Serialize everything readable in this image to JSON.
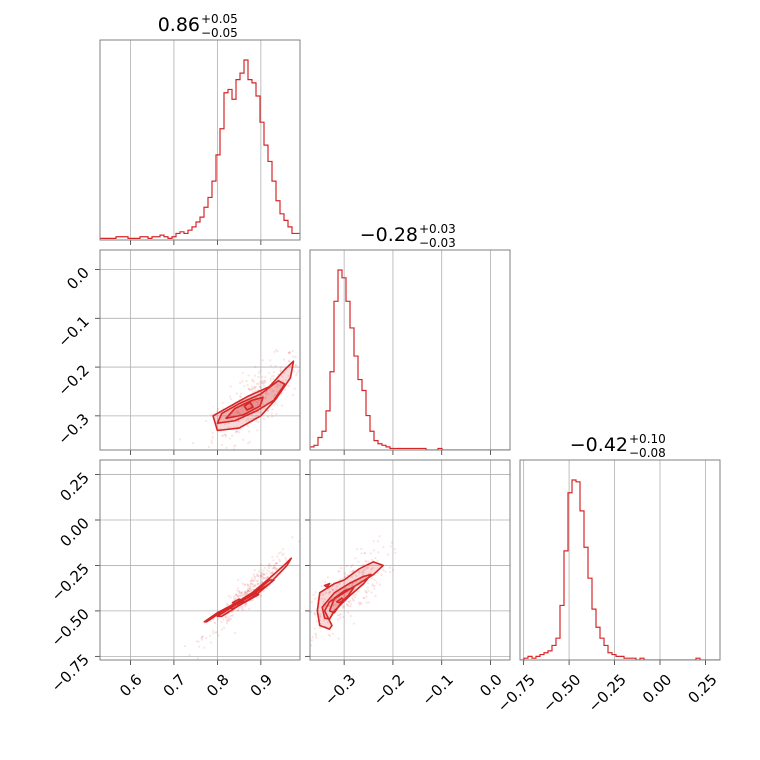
{
  "colors": {
    "series": "#d62728",
    "frame": "#808080",
    "grid": "#b0b0b0"
  },
  "chart_data": {
    "type": "corner",
    "grid": true,
    "parameters": [
      {
        "range": [
          0.53,
          0.99
        ],
        "ticks": [
          0.6,
          0.7,
          0.8,
          0.9
        ],
        "tick_labels": [
          "0.6",
          "0.7",
          "0.8",
          "0.9"
        ],
        "summary": {
          "median": "0.86",
          "plus": "+0.05",
          "minus": "−0.05"
        }
      },
      {
        "range": [
          -0.37,
          0.04
        ],
        "ticks": [
          -0.3,
          -0.2,
          -0.1,
          0.0
        ],
        "tick_labels": [
          "−0.3",
          "−0.2",
          "−0.1",
          "0.0"
        ],
        "summary": {
          "median": "−0.28",
          "plus": "+0.03",
          "minus": "−0.03"
        }
      },
      {
        "range": [
          -0.77,
          0.33
        ],
        "ticks": [
          -0.75,
          -0.5,
          -0.25,
          0.0,
          0.25
        ],
        "tick_labels": [
          "−0.75",
          "−0.50",
          "−0.25",
          "0.00",
          "0.25"
        ],
        "summary": {
          "median": "−0.42",
          "plus": "+0.10",
          "minus": "−0.08"
        }
      }
    ],
    "histograms": [
      {
        "param": 0,
        "bins": {
          "start": 0.53,
          "step": 0.0092
        },
        "counts": [
          1,
          1,
          1,
          1,
          2,
          2,
          2,
          1,
          1,
          1,
          2,
          2,
          1,
          2,
          2,
          3,
          2,
          1,
          2,
          4,
          5,
          4,
          6,
          8,
          11,
          14,
          20,
          26,
          36,
          52,
          68,
          90,
          92,
          86,
          98,
          102,
          110,
          98,
          96,
          88,
          72,
          58,
          48,
          36,
          24,
          16,
          12,
          8,
          4,
          4
        ]
      },
      {
        "param": 1,
        "bins": {
          "start": -0.37,
          "step": 0.0082
        },
        "counts": [
          2,
          3,
          8,
          12,
          25,
          50,
          95,
          115,
          110,
          95,
          78,
          60,
          45,
          38,
          22,
          12,
          6,
          4,
          3,
          2,
          1,
          1,
          1,
          1,
          1,
          1,
          1,
          1,
          1,
          0,
          0,
          0,
          1,
          0,
          0,
          0,
          0,
          0,
          0,
          0,
          0,
          0,
          0,
          0,
          0,
          0,
          0,
          0,
          0,
          0
        ]
      },
      {
        "param": 2,
        "bins": {
          "start": -0.77,
          "step": 0.022
        },
        "counts": [
          0,
          1,
          2,
          1,
          2,
          3,
          4,
          5,
          8,
          12,
          30,
          60,
          92,
          99,
          98,
          82,
          62,
          45,
          28,
          18,
          12,
          8,
          4,
          3,
          2,
          2,
          1,
          1,
          1,
          0,
          1,
          0,
          0,
          0,
          0,
          0,
          0,
          0,
          0,
          0,
          0,
          0,
          0,
          0,
          1,
          0,
          0,
          0,
          0,
          0
        ]
      }
    ],
    "pairs": [
      {
        "x_param": 0,
        "y_param": 1,
        "contours": [
          [
            [
              0.8,
              -0.33
            ],
            [
              0.79,
              -0.3
            ],
            [
              0.83,
              -0.28
            ],
            [
              0.87,
              -0.26
            ],
            [
              0.92,
              -0.24
            ],
            [
              0.955,
              -0.205
            ],
            [
              0.975,
              -0.188
            ],
            [
              0.968,
              -0.222
            ],
            [
              0.935,
              -0.265
            ],
            [
              0.9,
              -0.3
            ],
            [
              0.85,
              -0.325
            ]
          ],
          [
            [
              0.8,
              -0.315
            ],
            [
              0.81,
              -0.295
            ],
            [
              0.85,
              -0.275
            ],
            [
              0.9,
              -0.255
            ],
            [
              0.94,
              -0.228
            ],
            [
              0.955,
              -0.235
            ],
            [
              0.93,
              -0.268
            ],
            [
              0.89,
              -0.29
            ],
            [
              0.84,
              -0.31
            ]
          ],
          [
            [
              0.82,
              -0.305
            ],
            [
              0.84,
              -0.285
            ],
            [
              0.88,
              -0.268
            ],
            [
              0.905,
              -0.262
            ],
            [
              0.898,
              -0.28
            ],
            [
              0.86,
              -0.298
            ]
          ],
          [
            [
              0.862,
              -0.28
            ],
            [
              0.875,
              -0.272
            ],
            [
              0.882,
              -0.282
            ],
            [
              0.868,
              -0.288
            ]
          ]
        ]
      },
      {
        "x_param": 0,
        "y_param": 2,
        "contours": [
          [
            [
              0.77,
              -0.56
            ],
            [
              0.8,
              -0.51
            ],
            [
              0.84,
              -0.46
            ],
            [
              0.88,
              -0.41
            ],
            [
              0.92,
              -0.35
            ],
            [
              0.96,
              -0.25
            ],
            [
              0.97,
              -0.21
            ],
            [
              0.955,
              -0.245
            ],
            [
              0.92,
              -0.32
            ],
            [
              0.88,
              -0.4
            ],
            [
              0.84,
              -0.46
            ],
            [
              0.8,
              -0.52
            ],
            [
              0.775,
              -0.56
            ]
          ],
          [
            [
              0.8,
              -0.53
            ],
            [
              0.84,
              -0.47
            ],
            [
              0.88,
              -0.41
            ],
            [
              0.92,
              -0.33
            ],
            [
              0.93,
              -0.33
            ],
            [
              0.89,
              -0.41
            ],
            [
              0.85,
              -0.47
            ],
            [
              0.81,
              -0.53
            ]
          ],
          [
            [
              0.83,
              -0.48
            ],
            [
              0.86,
              -0.44
            ],
            [
              0.89,
              -0.4
            ],
            [
              0.895,
              -0.41
            ],
            [
              0.865,
              -0.45
            ],
            [
              0.835,
              -0.49
            ]
          ],
          [
            [
              0.835,
              -0.455
            ],
            [
              0.85,
              -0.435
            ],
            [
              0.86,
              -0.445
            ],
            [
              0.845,
              -0.465
            ]
          ]
        ]
      },
      {
        "x_param": 1,
        "y_param": 2,
        "contours": [
          [
            [
              -0.325,
              -0.58
            ],
            [
              -0.34,
              -0.5
            ],
            [
              -0.33,
              -0.45
            ],
            [
              -0.3,
              -0.4
            ],
            [
              -0.27,
              -0.35
            ],
            [
              -0.24,
              -0.3
            ],
            [
              -0.22,
              -0.25
            ],
            [
              -0.24,
              -0.23
            ],
            [
              -0.27,
              -0.27
            ],
            [
              -0.3,
              -0.33
            ],
            [
              -0.32,
              -0.35
            ],
            [
              -0.35,
              -0.4
            ],
            [
              -0.355,
              -0.5
            ],
            [
              -0.35,
              -0.58
            ],
            [
              -0.33,
              -0.6
            ]
          ],
          [
            [
              -0.34,
              -0.54
            ],
            [
              -0.345,
              -0.48
            ],
            [
              -0.32,
              -0.4
            ],
            [
              -0.29,
              -0.35
            ],
            [
              -0.26,
              -0.31
            ],
            [
              -0.245,
              -0.3
            ],
            [
              -0.26,
              -0.35
            ],
            [
              -0.29,
              -0.42
            ],
            [
              -0.32,
              -0.5
            ],
            [
              -0.33,
              -0.545
            ]
          ],
          [
            [
              -0.33,
              -0.5
            ],
            [
              -0.32,
              -0.43
            ],
            [
              -0.3,
              -0.39
            ],
            [
              -0.28,
              -0.37
            ],
            [
              -0.29,
              -0.41
            ],
            [
              -0.31,
              -0.47
            ],
            [
              -0.32,
              -0.51
            ]
          ],
          [
            [
              -0.315,
              -0.45
            ],
            [
              -0.305,
              -0.43
            ],
            [
              -0.3,
              -0.44
            ],
            [
              -0.31,
              -0.455
            ]
          ],
          [
            [
              -0.34,
              -0.36
            ],
            [
              -0.33,
              -0.35
            ],
            [
              -0.335,
              -0.37
            ]
          ]
        ]
      }
    ]
  }
}
